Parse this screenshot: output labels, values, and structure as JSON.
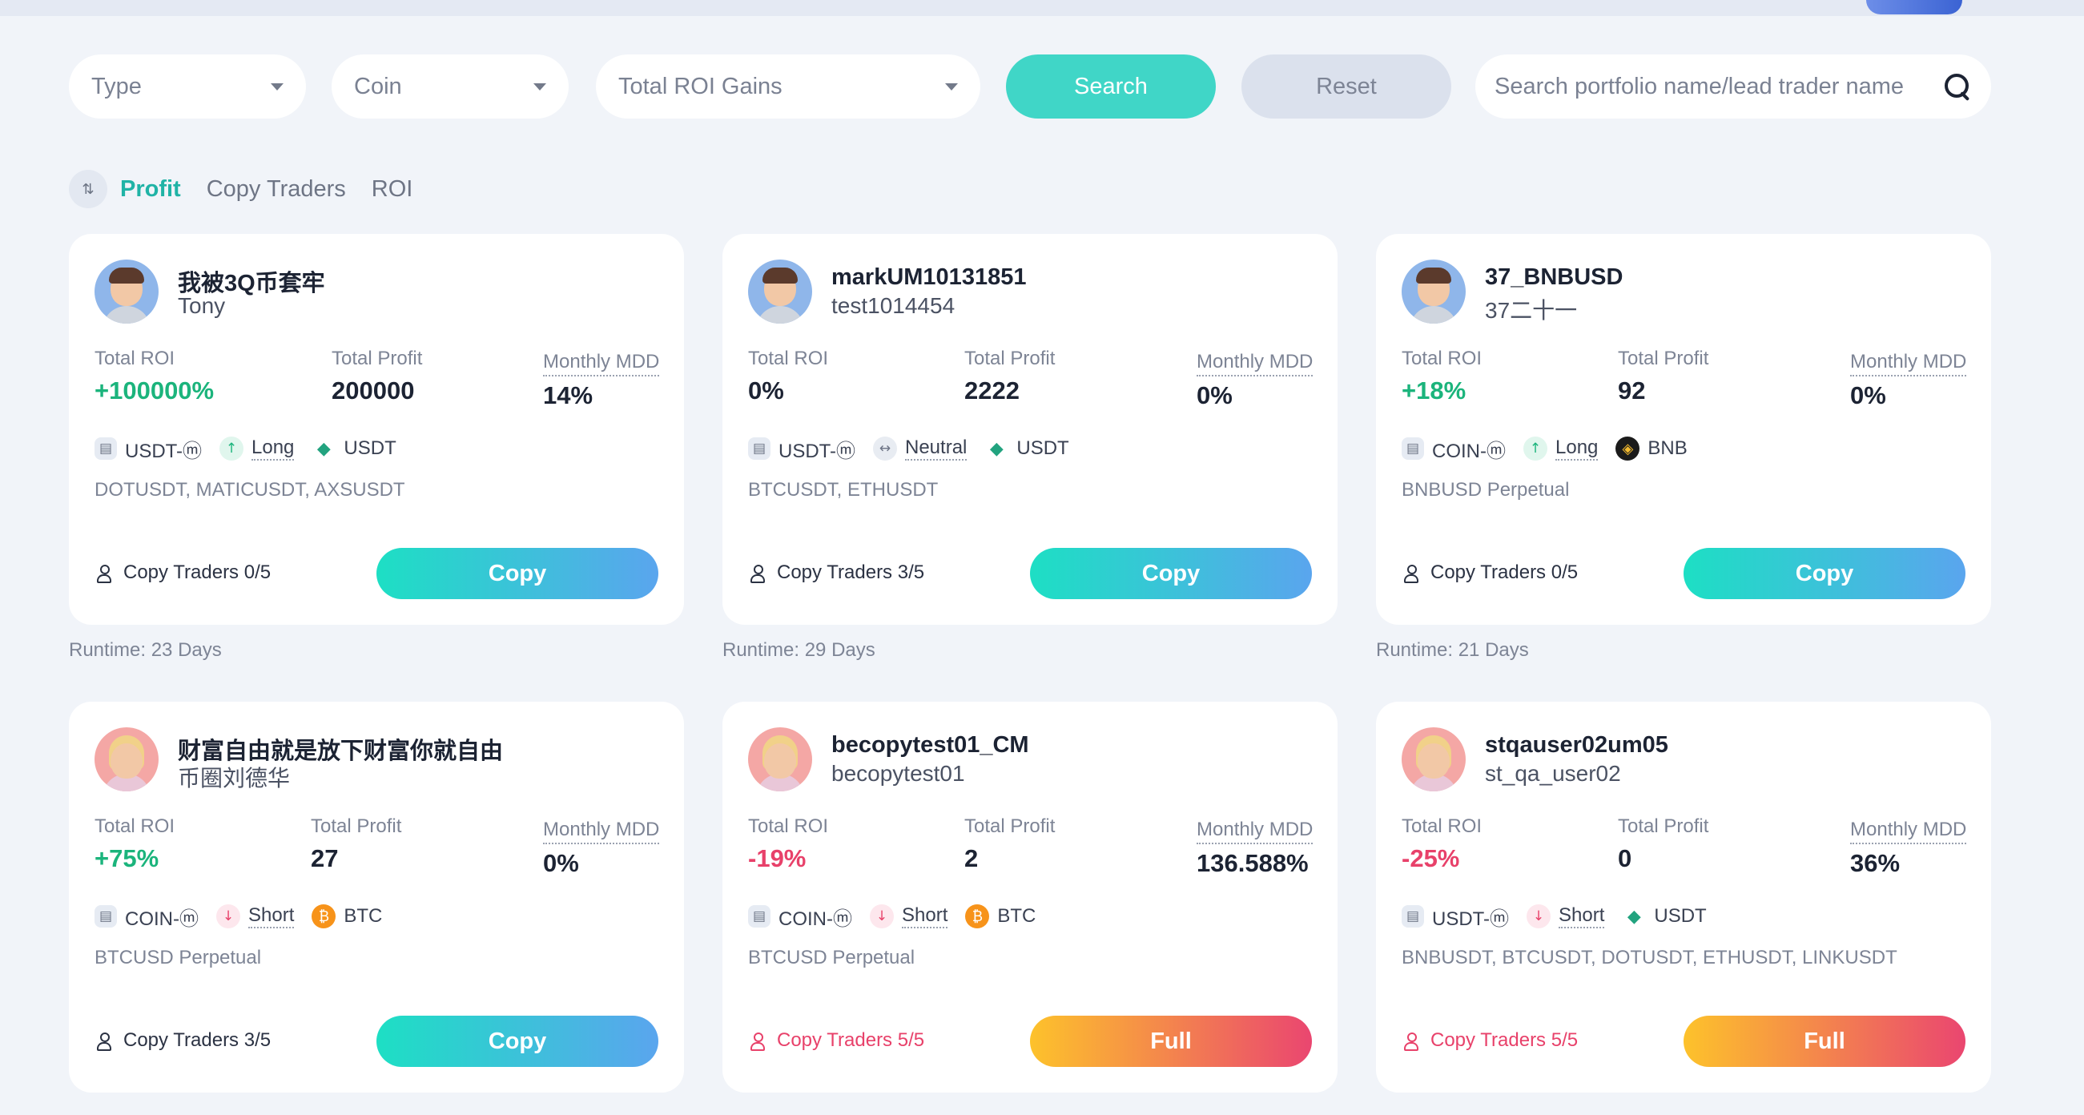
{
  "filters": {
    "type_placeholder": "Type",
    "coin_placeholder": "Coin",
    "sort_select": "Total ROI Gains",
    "search_label": "Search",
    "reset_label": "Reset",
    "search_placeholder": "Search portfolio name/lead trader name"
  },
  "sort_tabs": [
    "Profit",
    "Copy Traders",
    "ROI"
  ],
  "labels": {
    "total_roi": "Total ROI",
    "total_profit": "Total Profit",
    "monthly_mdd": "Monthly MDD"
  },
  "cards": [
    {
      "name": "我被3Q币套牢",
      "trader": "Tony",
      "roi": "+100000%",
      "profit": "200000",
      "mdd": "14%",
      "contract": "USDT-ⓜ",
      "direction": "Long",
      "asset": "USDT",
      "symbols": "DOTUSDT, MATICUSDT, AXSUSDT",
      "copiers": "Copy Traders 0/5",
      "button": "Copy",
      "runtime": "Runtime: 23 Days"
    },
    {
      "name": "markUM10131851",
      "trader": "test1014454",
      "roi": "0%",
      "profit": "2222",
      "mdd": "0%",
      "contract": "USDT-ⓜ",
      "direction": "Neutral",
      "asset": "USDT",
      "symbols": "BTCUSDT, ETHUSDT",
      "copiers": "Copy Traders 3/5",
      "button": "Copy",
      "runtime": "Runtime: 29 Days"
    },
    {
      "name": "37_BNBUSD",
      "trader": "37二十一",
      "roi": "+18%",
      "profit": "92",
      "mdd": "0%",
      "contract": "COIN-ⓜ",
      "direction": "Long",
      "asset": "BNB",
      "symbols": "BNBUSD Perpetual",
      "copiers": "Copy Traders 0/5",
      "button": "Copy",
      "runtime": "Runtime: 21 Days"
    },
    {
      "name": "财富自由就是放下财富你就自由",
      "trader": "币圈刘德华",
      "roi": "+75%",
      "profit": "27",
      "mdd": "0%",
      "contract": "COIN-ⓜ",
      "direction": "Short",
      "asset": "BTC",
      "symbols": "BTCUSD Perpetual",
      "copiers": "Copy Traders 3/5",
      "button": "Copy",
      "runtime": ""
    },
    {
      "name": "becopytest01_CM",
      "trader": "becopytest01",
      "roi": "-19%",
      "profit": "2",
      "mdd": "136.588%",
      "contract": "COIN-ⓜ",
      "direction": "Short",
      "asset": "BTC",
      "symbols": "BTCUSD Perpetual",
      "copiers": "Copy Traders 5/5",
      "button": "Full",
      "runtime": ""
    },
    {
      "name": "stqauser02um05",
      "trader": "st_qa_user02",
      "roi": "-25%",
      "profit": "0",
      "mdd": "36%",
      "contract": "USDT-ⓜ",
      "direction": "Short",
      "asset": "USDT",
      "symbols": "BNBUSDT, BTCUSDT, DOTUSDT, ETHUSDT, LINKUSDT",
      "copiers": "Copy Traders 5/5",
      "button": "Full",
      "runtime": ""
    }
  ]
}
